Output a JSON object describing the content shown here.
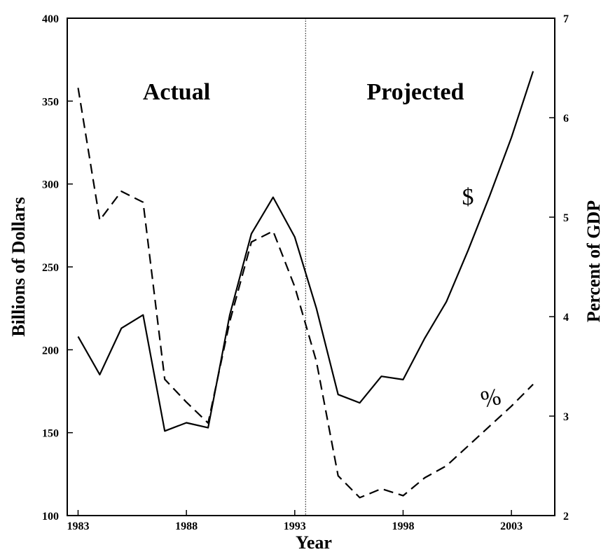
{
  "chart_data": {
    "type": "line",
    "title": "",
    "xlabel": "Year",
    "ylabel_left": "Billions of Dollars",
    "ylabel_right": "Percent of GDP",
    "xlim": [
      1982.5,
      2005
    ],
    "ylim_left": [
      100,
      400
    ],
    "ylim_right": [
      2,
      7
    ],
    "x_ticks": [
      "1983",
      "1988",
      "1993",
      "1998",
      "2003"
    ],
    "y_ticks_left": [
      "100",
      "150",
      "200",
      "250",
      "300",
      "350",
      "400"
    ],
    "y_ticks_right": [
      "2",
      "3",
      "4",
      "5",
      "6",
      "7"
    ],
    "divider_year": 1993.5,
    "region_labels": [
      "Actual",
      "Projected"
    ],
    "series": [
      {
        "name": "$",
        "axis": "left",
        "style": "solid",
        "x": [
          1983,
          1984,
          1985,
          1986,
          1987,
          1988,
          1989,
          1990,
          1991,
          1992,
          1993,
          1994,
          1995,
          1996,
          1997,
          1998,
          1999,
          2000,
          2001,
          2002,
          2003,
          2004
        ],
        "values": [
          208,
          185,
          213,
          221,
          151,
          156,
          153,
          221,
          270,
          292,
          268,
          225,
          173,
          168,
          184,
          182,
          207,
          229,
          260,
          293,
          328,
          368
        ]
      },
      {
        "name": "%",
        "axis": "right",
        "style": "dashed",
        "x": [
          1983,
          1984,
          1985,
          1986,
          1987,
          1988,
          1989,
          1990,
          1991,
          1992,
          1993,
          1994,
          1995,
          1996,
          1997,
          1998,
          1999,
          2000,
          2001,
          2002,
          2003,
          2004
        ],
        "values": [
          6.3,
          4.97,
          5.26,
          5.15,
          3.37,
          3.14,
          2.93,
          3.95,
          4.75,
          4.86,
          4.3,
          3.55,
          2.4,
          2.18,
          2.27,
          2.2,
          2.38,
          2.5,
          2.7,
          2.9,
          3.1,
          3.32
        ]
      }
    ]
  }
}
